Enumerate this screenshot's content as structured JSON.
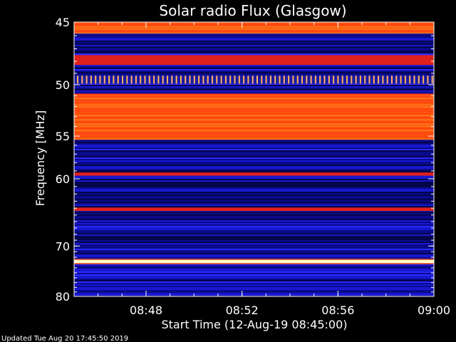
{
  "chart_data": {
    "type": "heatmap",
    "title": "Solar radio Flux (Glasgow)",
    "xlabel": "Start Time (12-Aug-19 08:45:00)",
    "ylabel": "Frequency [MHz]",
    "x_range": [
      "08:45",
      "09:00"
    ],
    "x_ticks": [
      "08:48",
      "08:52",
      "08:56",
      "09:00"
    ],
    "y_range": [
      45,
      80
    ],
    "y_ticks": [
      45,
      50,
      55,
      60,
      70,
      80
    ],
    "bands": [
      {
        "f_start": 45.0,
        "f_end": 45.8,
        "level": "hot"
      },
      {
        "f_start": 47.5,
        "f_end": 48.3,
        "level": "warm"
      },
      {
        "f_start": 49.2,
        "f_end": 49.9,
        "level": "pulsed"
      },
      {
        "f_start": 50.8,
        "f_end": 55.4,
        "level": "hot"
      },
      {
        "f_start": 59.2,
        "f_end": 59.6,
        "level": "warm"
      },
      {
        "f_start": 63.9,
        "f_end": 64.4,
        "level": "warm"
      },
      {
        "f_start": 72.5,
        "f_end": 73.1,
        "level": "saturated"
      }
    ],
    "colors": {
      "background": "#000000",
      "low": "#0a0a8c",
      "mid": "#2a2aff",
      "warm": "#e0201a",
      "hot": "#ff5a10",
      "saturated": "#ffffc8"
    }
  },
  "footer": {
    "updated": "Updated Tue Aug 20 17:45:50 2019"
  }
}
